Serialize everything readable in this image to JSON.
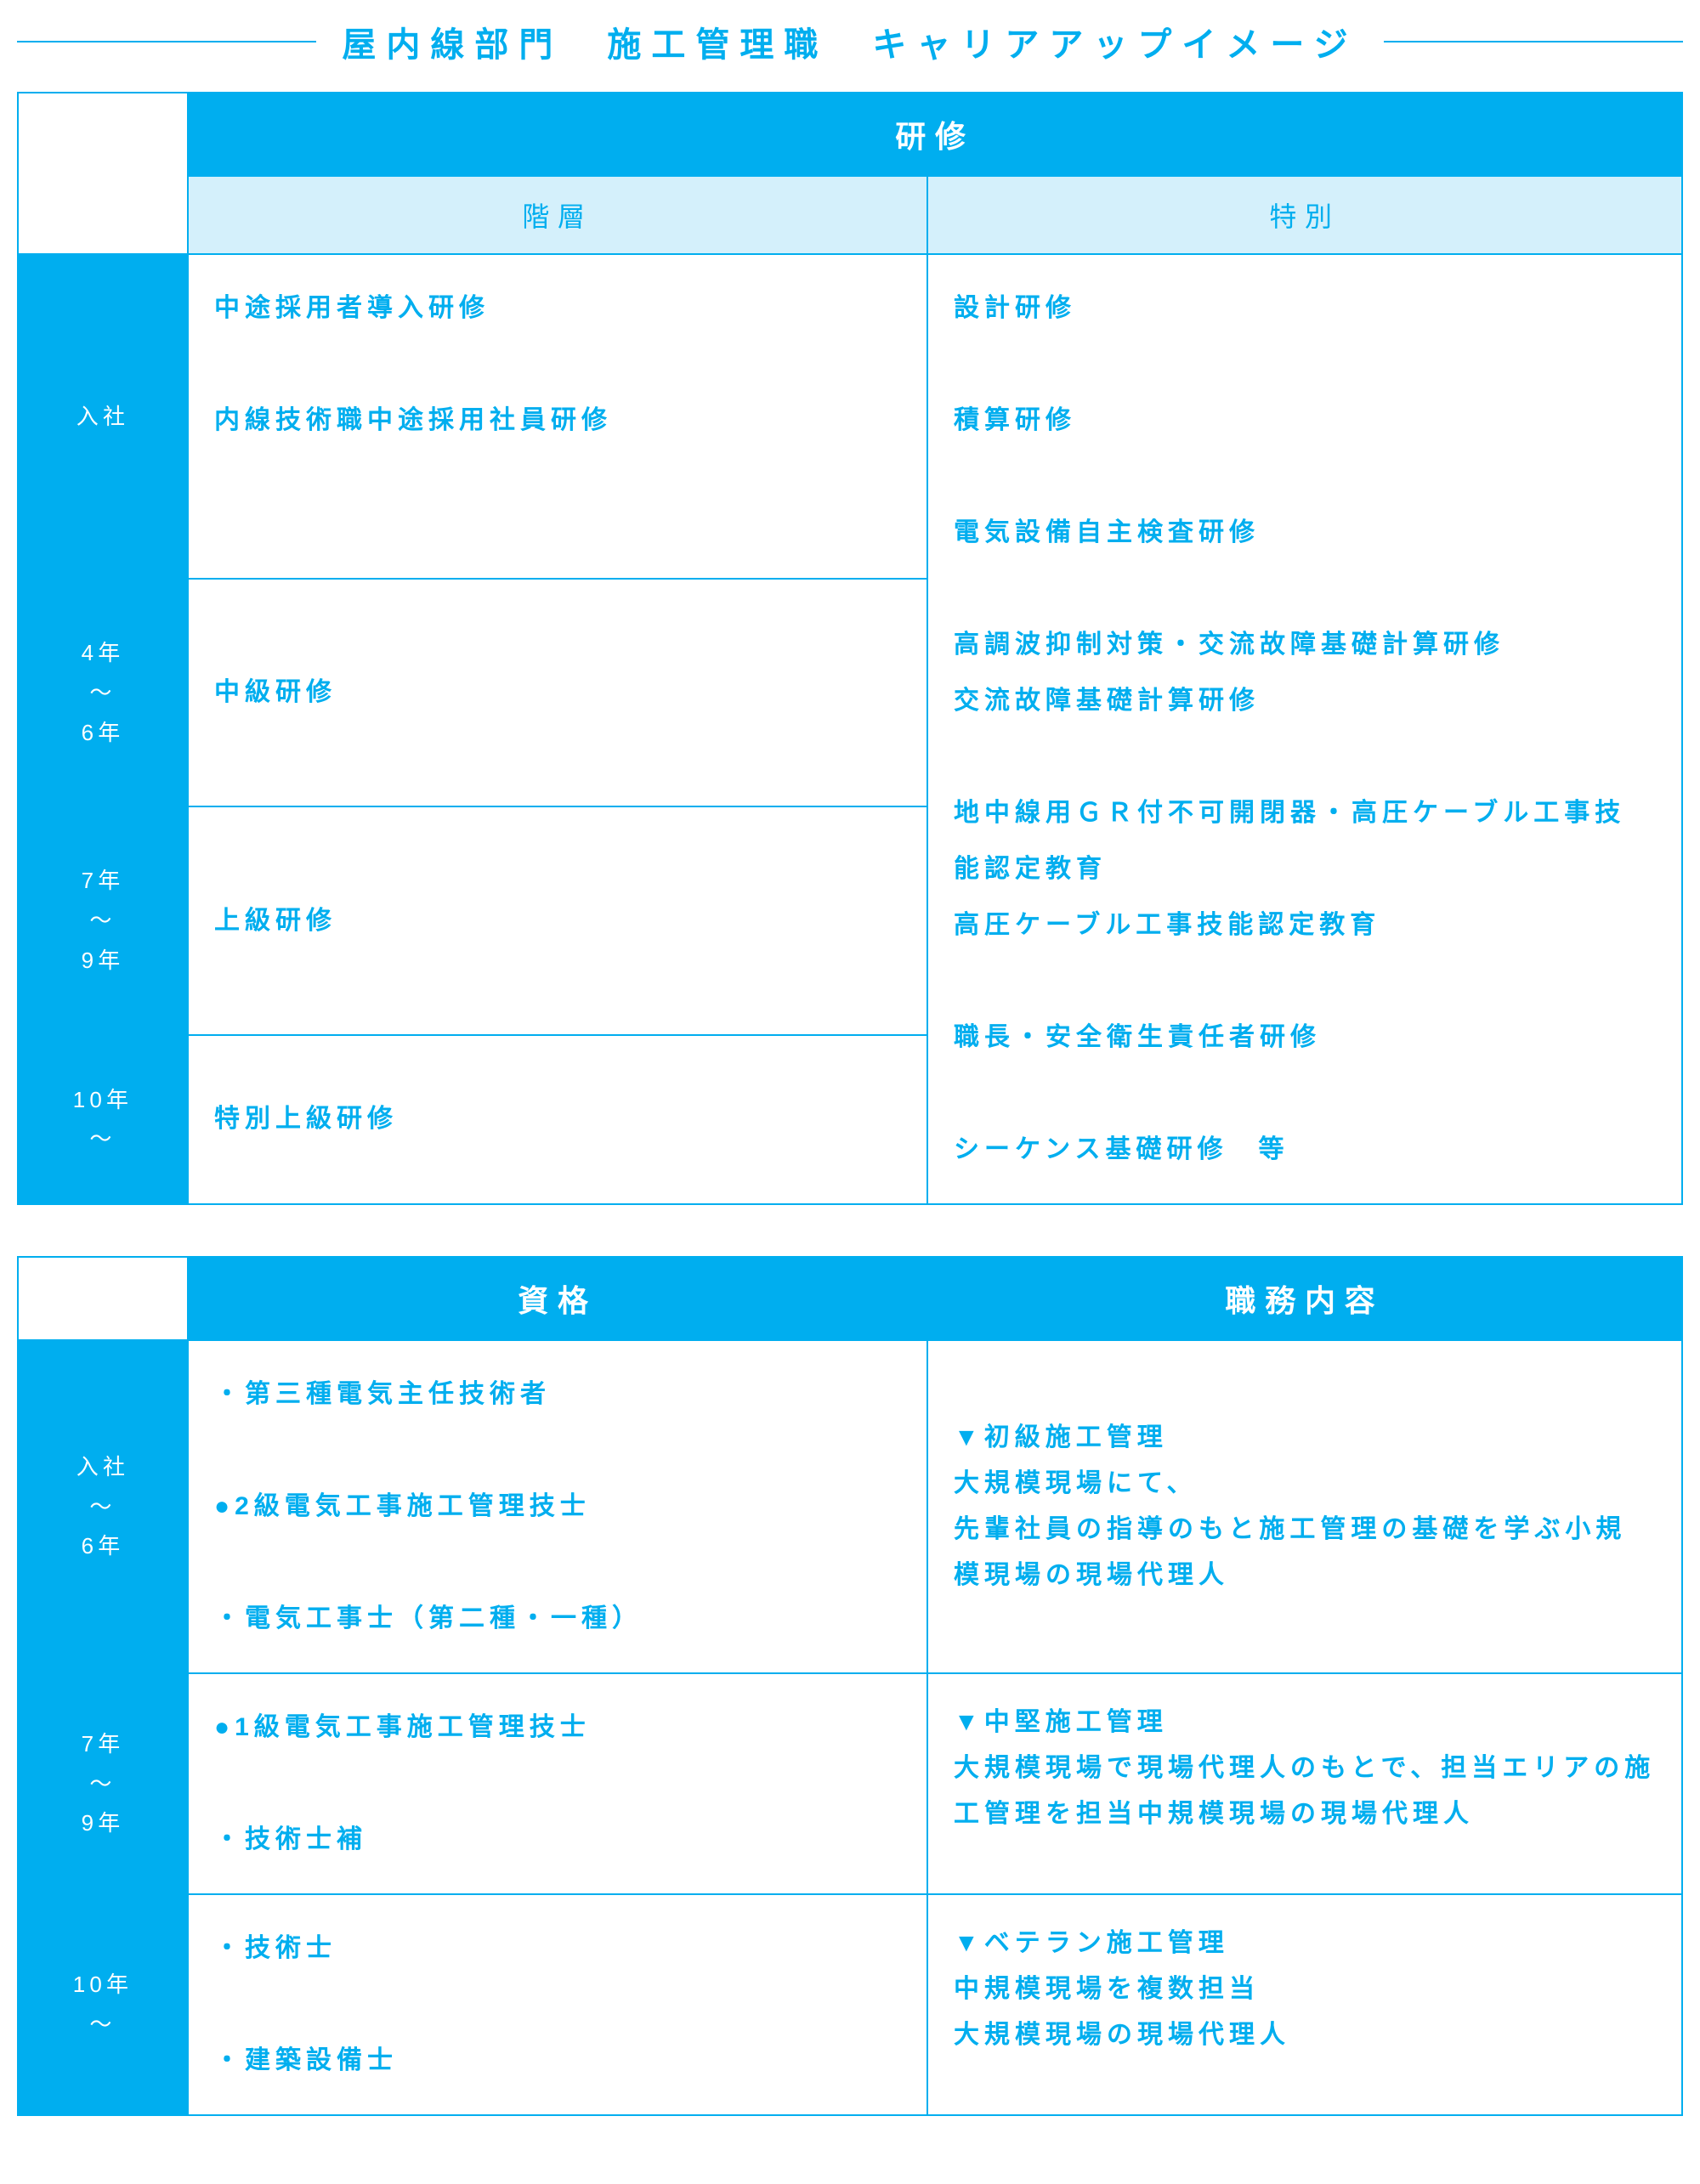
{
  "title": "屋内線部門　施工管理職　キャリアアップイメージ",
  "colors": {
    "brand": "#00aeef",
    "subheader_bg": "#d4f0fb",
    "white": "#ffffff"
  },
  "table1": {
    "header_main": "研修",
    "header_sub_left": "階層",
    "header_sub_right": "特別",
    "rows": [
      {
        "label": "入社",
        "left": "中途採用者導入研修\n\n内線技術職中途採用社員研修"
      },
      {
        "label": "4年\n〜\n6年",
        "left": "中級研修"
      },
      {
        "label": "7年\n〜\n9年",
        "left": "上級研修"
      },
      {
        "label": "10年\n〜",
        "left": "特別上級研修"
      }
    ],
    "right_merged": "設計研修\n\n積算研修\n\n電気設備自主検査研修\n\n高調波抑制対策・交流故障基礎計算研修\n交流故障基礎計算研修\n\n地中線用ＧＲ付不可開閉器・高圧ケーブル工事技能認定教育\n高圧ケーブル工事技能認定教育\n\n職長・安全衛生責任者研修\n\nシーケンス基礎研修　等"
  },
  "table2": {
    "header_left": "資格",
    "header_right": "職務内容",
    "rows": [
      {
        "label": "入社\n〜\n6年",
        "left": "・第三種電気主任技術者\n\n●2級電気工事施工管理技士\n\n・電気工事士（第二種・一種）",
        "right": "▼初級施工管理\n大規模現場にて、\n先輩社員の指導のもと施工管理の基礎を学ぶ小規模現場の現場代理人"
      },
      {
        "label": "7年\n〜\n9年",
        "left": "●1級電気工事施工管理技士\n\n・技術士補",
        "right": "▼中堅施工管理\n大規模現場で現場代理人のもとで、担当エリアの施工管理を担当中規模現場の現場代理人"
      },
      {
        "label": "10年\n〜",
        "left": "・技術士\n\n・建築設備士",
        "right": "▼ベテラン施工管理\n中規模現場を複数担当\n大規模現場の現場代理人"
      }
    ]
  }
}
